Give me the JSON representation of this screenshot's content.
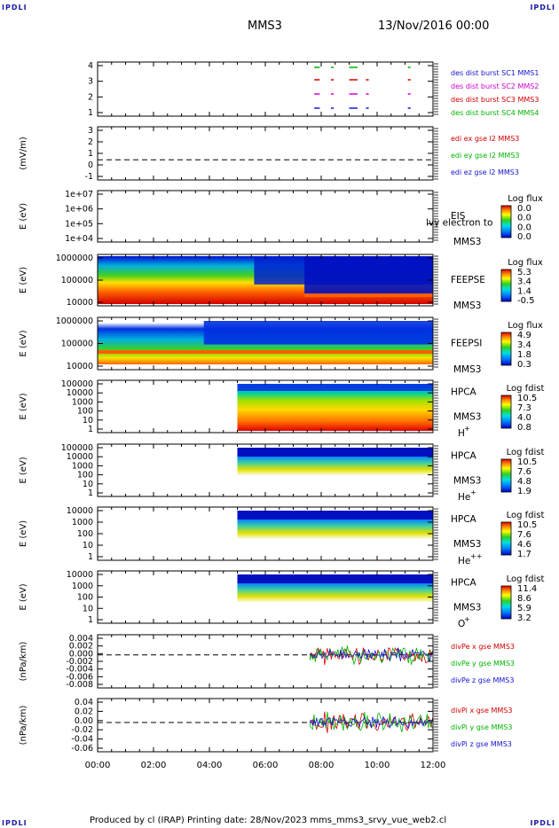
{
  "header": {
    "corner_label": "IPDLI",
    "spacecraft": "MMS3",
    "date": "13/Nov/2016 00:00"
  },
  "footer": {
    "text": "Produced by cl (IRAP)   Printing date: 28/Nov/2023   mms_mms3_srvy_vue_web2.cl"
  },
  "chart_data": {
    "type": "multi-panel time series",
    "x_ticks": [
      "00:00",
      "02:00",
      "04:00",
      "06:00",
      "08:00",
      "10:00",
      "12:00"
    ],
    "x_range_hours": [
      0,
      12
    ],
    "panels": [
      {
        "id": "burst",
        "type": "event",
        "ylabel": "",
        "ticks": [
          "1",
          "2",
          "3",
          "4"
        ],
        "legend": [
          {
            "text": "des dist burst SC1 MMS1",
            "color": "#1414d2"
          },
          {
            "text": "des dist burst SC2 MMS2",
            "color": "#d200d2"
          },
          {
            "text": "des dist burst SC3 MMS3",
            "color": "#d20000"
          },
          {
            "text": "des dist burst SC4 MMS4",
            "color": "#00b400"
          }
        ],
        "segments_hours": [
          [
            7.75,
            7.95
          ],
          [
            8.35,
            8.45
          ],
          [
            9.0,
            9.3
          ],
          [
            9.6,
            9.7
          ],
          [
            11.1,
            11.2
          ]
        ]
      },
      {
        "id": "edi",
        "type": "line",
        "ylabel": "(mV/m)",
        "ticks": [
          "-1",
          "0",
          "1",
          "2",
          "3"
        ],
        "legend": [
          {
            "text": "edi ex gse l2 MMS3",
            "color": "#d20000"
          },
          {
            "text": "edi ey gse l2 MMS3",
            "color": "#00b400"
          },
          {
            "text": "edi ez gse l2 MMS3",
            "color": "#1414d2"
          }
        ]
      },
      {
        "id": "eis",
        "type": "spectrogram",
        "ylabel": "E (eV)",
        "ticks": [
          "1e+04",
          "1e+05",
          "1e+06",
          "1e+07"
        ],
        "instrument": "EIS",
        "instrument_sub": "MMS3",
        "overlay": "lvy electron to",
        "colorbar_title": "Log flux",
        "colorbar_values": [
          "0.0",
          "0.0",
          "0.0",
          "0.0"
        ]
      },
      {
        "id": "feepse",
        "type": "spectrogram",
        "ylabel": "E (eV)",
        "ticks": [
          "10000",
          "100000",
          "1000000"
        ],
        "instrument": "FEEPSE",
        "instrument_sub": "MMS3",
        "colorbar_title": "Log flux",
        "colorbar_values": [
          "5.3",
          "3.4",
          "1.4",
          "-0.5"
        ]
      },
      {
        "id": "feepsi",
        "type": "spectrogram",
        "ylabel": "E (eV)",
        "ticks": [
          "10000",
          "100000",
          "1000000"
        ],
        "instrument": "FEEPSI",
        "instrument_sub": "MMS3",
        "colorbar_title": "Log flux",
        "colorbar_values": [
          "4.9",
          "3.4",
          "1.8",
          "0.3"
        ]
      },
      {
        "id": "hpca_h",
        "type": "spectrogram",
        "ylabel": "E (eV)",
        "ticks": [
          "1",
          "10",
          "100",
          "1000",
          "10000",
          "100000"
        ],
        "instrument": "HPCA",
        "instrument_sub": "MMS3",
        "species": "H",
        "species_sup": "+",
        "colorbar_title": "Log fdist",
        "colorbar_values": [
          "10.5",
          "7.3",
          "4.0",
          "0.8"
        ]
      },
      {
        "id": "hpca_he",
        "type": "spectrogram",
        "ylabel": "E (eV)",
        "ticks": [
          "1",
          "10",
          "100",
          "1000",
          "10000",
          "100000"
        ],
        "instrument": "HPCA",
        "instrument_sub": "MMS3",
        "species": "He",
        "species_sup": "+",
        "colorbar_title": "Log fdist",
        "colorbar_values": [
          "10.5",
          "7.6",
          "4.8",
          "1.9"
        ]
      },
      {
        "id": "hpca_hepp",
        "type": "spectrogram",
        "ylabel": "E (eV)",
        "ticks": [
          "1",
          "10",
          "100",
          "1000",
          "10000"
        ],
        "instrument": "HPCA",
        "instrument_sub": "MMS3",
        "species": "He",
        "species_sup": "++",
        "colorbar_title": "Log fdist",
        "colorbar_values": [
          "10.5",
          "7.6",
          "4.6",
          "1.7"
        ]
      },
      {
        "id": "hpca_o",
        "type": "spectrogram",
        "ylabel": "E (eV)",
        "ticks": [
          "1",
          "10",
          "100",
          "1000",
          "10000"
        ],
        "instrument": "HPCA",
        "instrument_sub": "MMS3",
        "species": "O",
        "species_sup": "+",
        "colorbar_title": "Log fdist",
        "colorbar_values": [
          "11.4",
          "8.6",
          "5.9",
          "3.2"
        ]
      },
      {
        "id": "divpe",
        "type": "line",
        "ylabel": "(nPa/km)",
        "ticks": [
          "-0.008",
          "-0.006",
          "-0.004",
          "-0.002",
          "0.000",
          "0.002",
          "0.004"
        ],
        "legend": [
          {
            "text": "divPe x gse MMS3",
            "color": "#d20000"
          },
          {
            "text": "divPe y gse MMS3",
            "color": "#00b400"
          },
          {
            "text": "divPe z gse MMS3",
            "color": "#1414d2"
          }
        ]
      },
      {
        "id": "divpi",
        "type": "line",
        "ylabel": "(nPa/km)",
        "ticks": [
          "-0.06",
          "-0.04",
          "-0.02",
          "0.00",
          "0.02",
          "0.04"
        ],
        "legend": [
          {
            "text": "divPi x gse MMS3",
            "color": "#d20000"
          },
          {
            "text": "divPi y gse MMS3",
            "color": "#00b400"
          },
          {
            "text": "divPi z gse MMS3",
            "color": "#1414d2"
          }
        ]
      }
    ]
  }
}
